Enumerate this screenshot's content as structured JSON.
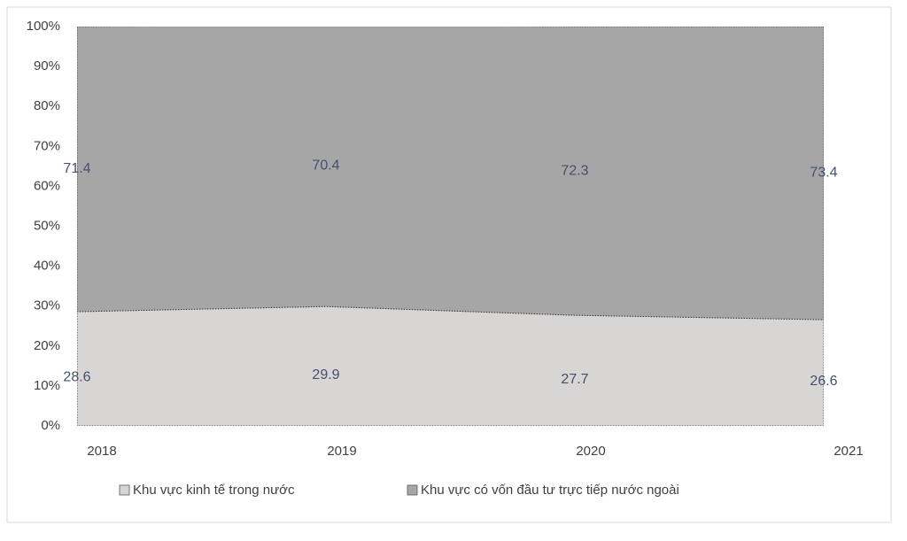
{
  "chart_data": {
    "type": "stacked_area_100",
    "categories": [
      "2018",
      "2019",
      "2020",
      "2021"
    ],
    "series": [
      {
        "name": "Khu vực kinh tế trong nước",
        "color": "#d8d5d5",
        "values": [
          28.6,
          29.9,
          27.7,
          26.6
        ]
      },
      {
        "name": "Khu vực có vốn đầu tư trực tiếp nước ngoài",
        "color": "#a6a6a6",
        "values": [
          71.4,
          70.4,
          72.3,
          73.4
        ]
      }
    ],
    "ylim": [
      0,
      100
    ],
    "yticks": [
      {
        "value": 0,
        "label": "0%"
      },
      {
        "value": 10,
        "label": "10%"
      },
      {
        "value": 20,
        "label": "20%"
      },
      {
        "value": 30,
        "label": "30%"
      },
      {
        "value": 40,
        "label": "40%"
      },
      {
        "value": 50,
        "label": "50%"
      },
      {
        "value": 60,
        "label": "60%"
      },
      {
        "value": 70,
        "label": "70%"
      },
      {
        "value": 80,
        "label": "80%"
      },
      {
        "value": 90,
        "label": "90%"
      },
      {
        "value": 100,
        "label": "100%"
      }
    ],
    "legend": "bottom"
  }
}
